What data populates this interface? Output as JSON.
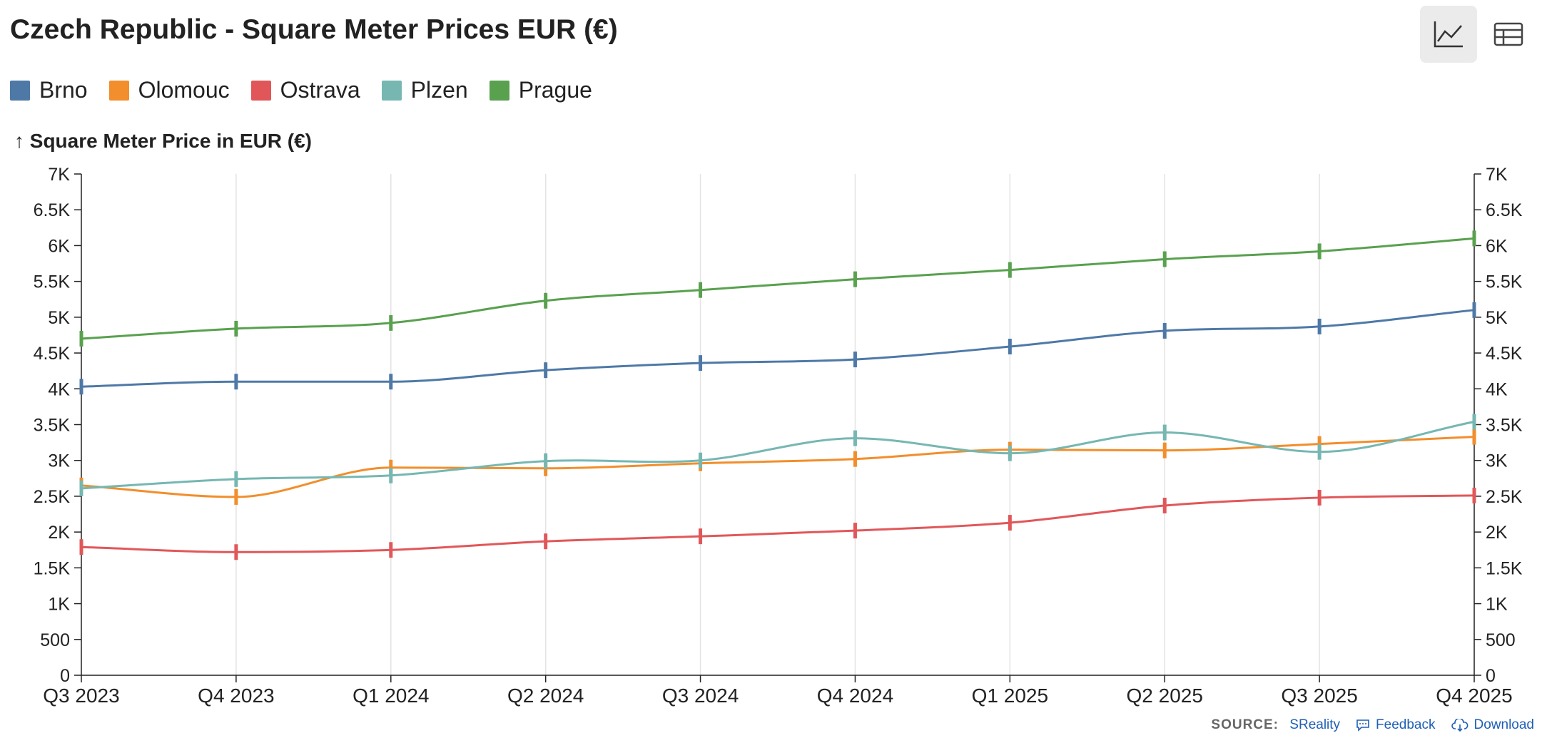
{
  "title": "Czech Republic - Square Meter Prices EUR (€)",
  "toolbar": {
    "line_view_icon": "line-chart-icon",
    "table_view_icon": "table-icon"
  },
  "chart_data": {
    "type": "line",
    "ylabel": "↑ Square Meter Price in EUR (€)",
    "x": [
      "Q3 2023",
      "Q4 2023",
      "Q1 2024",
      "Q2 2024",
      "Q3 2024",
      "Q4 2024",
      "Q1 2025",
      "Q2 2025",
      "Q3 2025",
      "Q4 2025"
    ],
    "ylim": [
      0,
      7000
    ],
    "yticks": [
      0,
      500,
      1000,
      1500,
      2000,
      2500,
      3000,
      3500,
      4000,
      4500,
      5000,
      5500,
      6000,
      6500,
      7000
    ],
    "ytick_labels": [
      "0",
      "500",
      "1K",
      "1.5K",
      "2K",
      "2.5K",
      "3K",
      "3.5K",
      "4K",
      "4.5K",
      "5K",
      "5.5K",
      "6K",
      "6.5K",
      "7K"
    ],
    "grid": "vertical",
    "legend_position": "top-left",
    "series": [
      {
        "name": "Brno",
        "color": "#4e79a7",
        "values": [
          4030,
          4100,
          4100,
          4260,
          4360,
          4410,
          4590,
          4810,
          4870,
          5100
        ]
      },
      {
        "name": "Olomouc",
        "color": "#f28e2b",
        "values": [
          2650,
          2490,
          2900,
          2890,
          2960,
          3020,
          3150,
          3140,
          3230,
          3330
        ]
      },
      {
        "name": "Ostrava",
        "color": "#e15759",
        "values": [
          1790,
          1720,
          1750,
          1870,
          1940,
          2020,
          2130,
          2370,
          2480,
          2510
        ]
      },
      {
        "name": "Plzen",
        "color": "#76b7b2",
        "values": [
          2610,
          2740,
          2790,
          2990,
          3000,
          3310,
          3100,
          3390,
          3120,
          3540
        ]
      },
      {
        "name": "Prague",
        "color": "#59a14f",
        "values": [
          4700,
          4840,
          4920,
          5230,
          5380,
          5530,
          5660,
          5810,
          5920,
          6100
        ]
      }
    ]
  },
  "footer": {
    "source_label": "SOURCE:",
    "source_name": "SReality",
    "feedback_label": "Feedback",
    "download_label": "Download"
  }
}
